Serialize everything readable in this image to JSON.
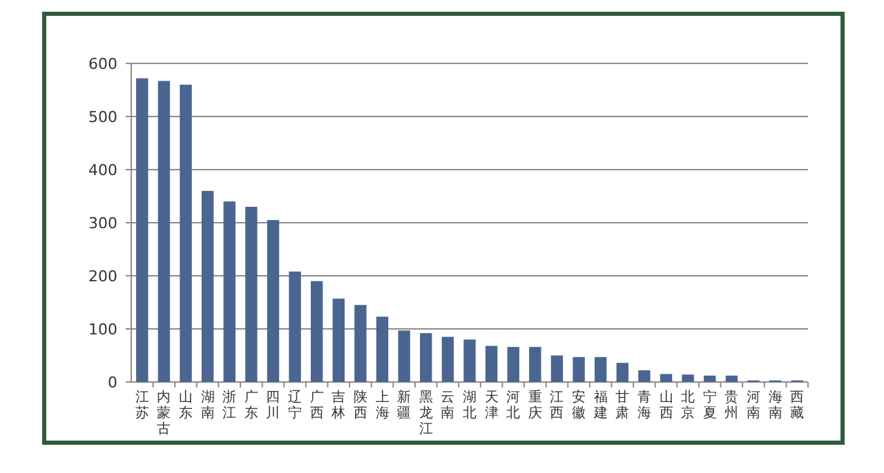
{
  "chart_data": {
    "type": "bar",
    "categories": [
      "江苏",
      "内蒙古",
      "山东",
      "湖南",
      "浙江",
      "广东",
      "四川",
      "辽宁",
      "广西",
      "吉林",
      "陕西",
      "上海",
      "新疆",
      "黑龙江",
      "云南",
      "湖北",
      "天津",
      "河北",
      "重庆",
      "江西",
      "安徽",
      "福建",
      "甘肃",
      "青海",
      "山西",
      "北京",
      "宁夏",
      "贵州",
      "河南",
      "海南",
      "西藏"
    ],
    "values": [
      572,
      567,
      560,
      360,
      340,
      330,
      305,
      208,
      190,
      157,
      145,
      123,
      97,
      92,
      85,
      80,
      68,
      66,
      66,
      50,
      47,
      47,
      36,
      22,
      15,
      14,
      12,
      12,
      3,
      3,
      3
    ],
    "color": "#4a6590",
    "ylim": [
      0,
      600
    ],
    "yticks": [
      0,
      100,
      200,
      300,
      400,
      500,
      600
    ],
    "grid": "y"
  }
}
